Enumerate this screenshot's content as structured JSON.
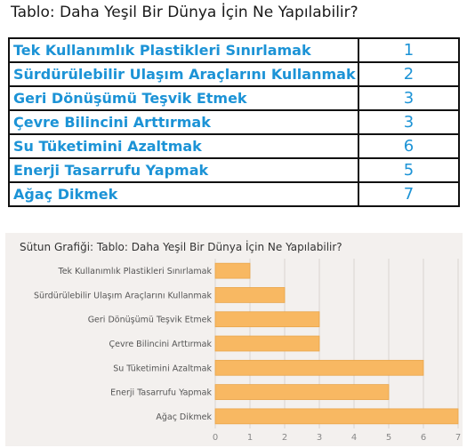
{
  "page": {
    "title": "Tablo: Daha Yeşil Bir Dünya İçin Ne Yapılabilir?"
  },
  "table": {
    "rows": [
      {
        "label": "Tek Kullanımlık Plastikleri Sınırlamak",
        "value": "1"
      },
      {
        "label": "Sürdürülebilir Ulaşım Araçlarını Kullanmak",
        "value": "2"
      },
      {
        "label": "Geri Dönüşümü Teşvik Etmek",
        "value": "3"
      },
      {
        "label": "Çevre Bilincini Arttırmak",
        "value": "3"
      },
      {
        "label": "Su Tüketimini Azaltmak",
        "value": "6"
      },
      {
        "label": "Enerji Tasarrufu Yapmak",
        "value": "5"
      },
      {
        "label": "Ağaç Dikmek",
        "value": "7"
      }
    ]
  },
  "chart_data": {
    "type": "bar",
    "orientation": "horizontal",
    "title": "Sütun Grafiği: Tablo: Daha Yeşil Bir Dünya İçin Ne Yapılabilir?",
    "categories": [
      "Tek Kullanımlık Plastikleri Sınırlamak",
      "Sürdürülebilir Ulaşım Araçlarını Kullanmak",
      "Geri Dönüşümü Teşvik Etmek",
      "Çevre Bilincini Arttırmak",
      "Su Tüketimini Azaltmak",
      "Enerji Tasarrufu Yapmak",
      "Ağaç Dikmek"
    ],
    "values": [
      1,
      2,
      3,
      3,
      6,
      5,
      7
    ],
    "xlim": [
      0,
      7
    ],
    "xticks": [
      "0",
      "1",
      "2",
      "3",
      "4",
      "5",
      "6",
      "7"
    ],
    "grid": true,
    "colors": {
      "bar": "#f8b862",
      "bar_edge": "#e9a54a",
      "grid": "#d8d4d0",
      "panel": "#f3f0ee"
    }
  }
}
